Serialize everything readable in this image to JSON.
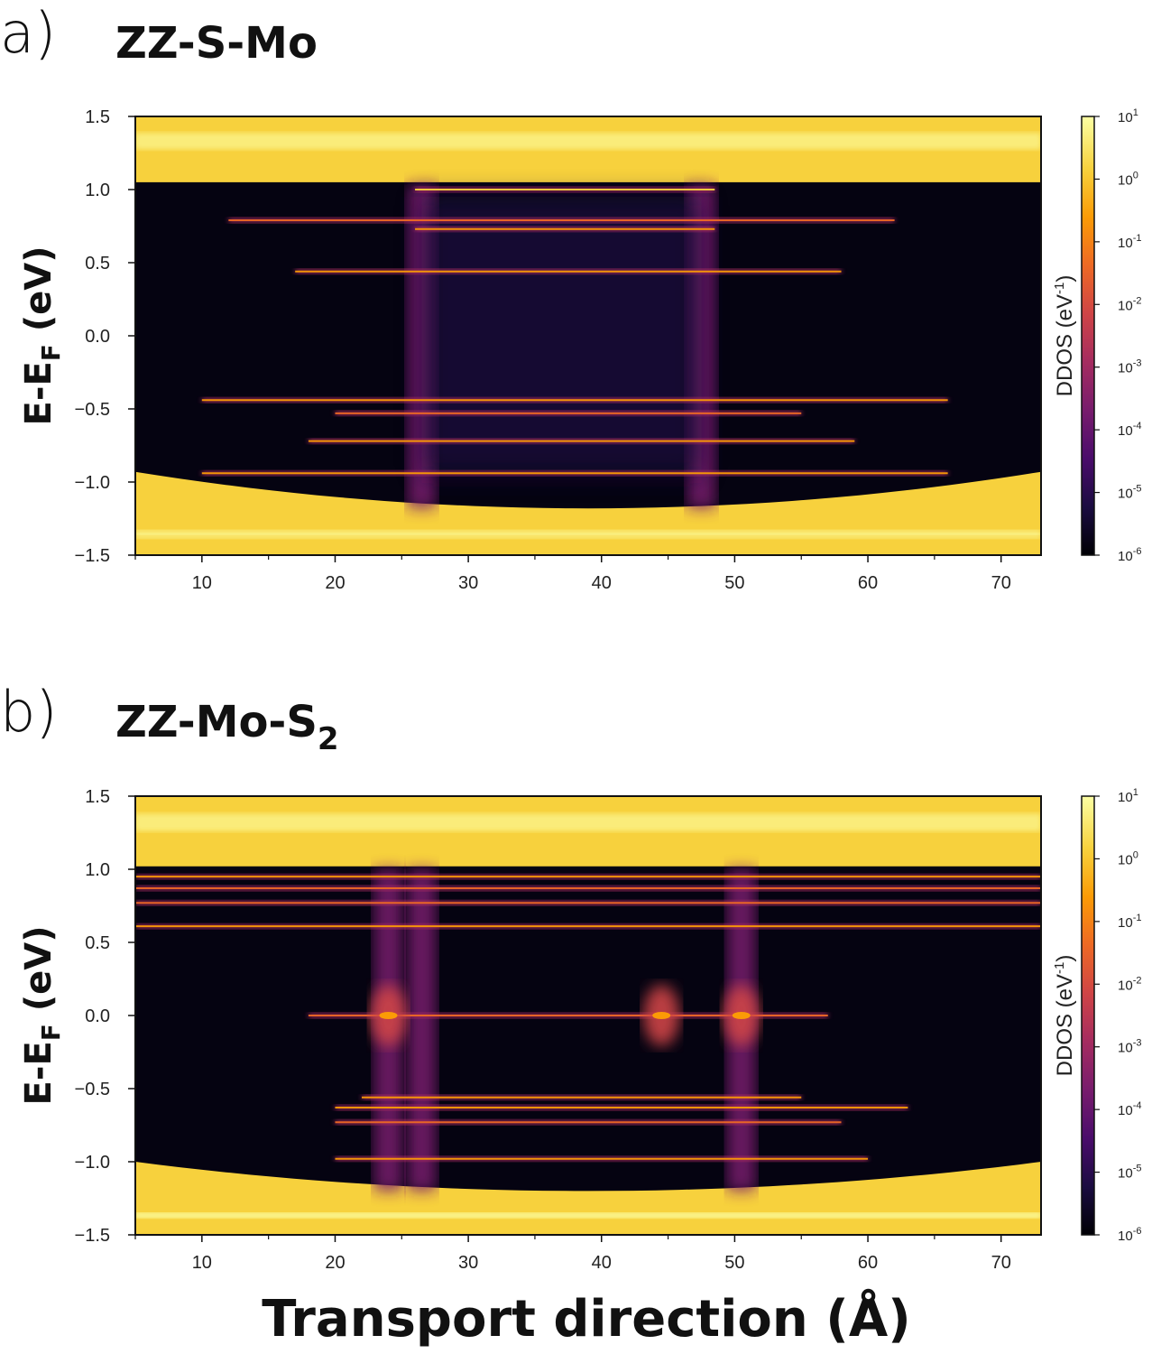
{
  "figure": {
    "xlabel": "Transport direction (Å)",
    "colormap": [
      "#000004",
      "#1b0c41",
      "#4a0c6b",
      "#781c6d",
      "#a52c60",
      "#cf4446",
      "#ed6925",
      "#fb9b06",
      "#f7d13d",
      "#fcffa4"
    ]
  },
  "chart_data": [
    {
      "type": "heatmap",
      "panel": "a)",
      "title": "ZZ-S-Mo",
      "title_subscript": "",
      "ylabel_main": "E-E",
      "ylabel_sub": "F",
      "ylabel_unit": " (eV)",
      "xlim": [
        5,
        73
      ],
      "ylim": [
        -1.5,
        1.5
      ],
      "x_ticks": [
        "10",
        "20",
        "30",
        "40",
        "50",
        "60",
        "70"
      ],
      "y_ticks": [
        "1.5",
        "1.0",
        "0.5",
        "0.0",
        "−0.5",
        "−1.0",
        "−1.5"
      ],
      "colorbar_label": "DDOS (eV",
      "colorbar_label_sup": "-1",
      "colorbar_ticks": [
        {
          "base": "10",
          "exp": "1"
        },
        {
          "base": "10",
          "exp": "0"
        },
        {
          "base": "10",
          "exp": "-1"
        },
        {
          "base": "10",
          "exp": "-2"
        },
        {
          "base": "10",
          "exp": "-3"
        },
        {
          "base": "10",
          "exp": "-4"
        },
        {
          "base": "10",
          "exp": "-5"
        },
        {
          "base": "10",
          "exp": "-6"
        }
      ],
      "conduction_band_min_eV": 1.05,
      "valence_band_max_eV": -0.93,
      "valence_edge_dip_eV": 0.25,
      "defect_columns_x": [
        26.5,
        47.5
      ],
      "defect_states": [
        {
          "E": 1.0,
          "x_start": 26,
          "x_end": 48.5,
          "intensity": 1.0
        },
        {
          "E": 0.79,
          "x_start": 12,
          "x_end": 62,
          "intensity": 0.55
        },
        {
          "E": 0.73,
          "x_start": 26,
          "x_end": 48.5,
          "intensity": 0.75
        },
        {
          "E": 0.44,
          "x_start": 17,
          "x_end": 58,
          "intensity": 0.8
        },
        {
          "E": -0.44,
          "x_start": 10,
          "x_end": 66,
          "intensity": 0.85
        },
        {
          "E": -0.53,
          "x_start": 20,
          "x_end": 55,
          "intensity": 0.55
        },
        {
          "E": -0.72,
          "x_start": 18,
          "x_end": 59,
          "intensity": 0.7
        },
        {
          "E": -0.94,
          "x_start": 10,
          "x_end": 66,
          "intensity": 0.65
        }
      ]
    },
    {
      "type": "heatmap",
      "panel": "b)",
      "title": "ZZ-Mo-S",
      "title_subscript": "2",
      "ylabel_main": "E-E",
      "ylabel_sub": "F",
      "ylabel_unit": " (eV)",
      "xlim": [
        5,
        73
      ],
      "ylim": [
        -1.5,
        1.5
      ],
      "x_ticks": [
        "10",
        "20",
        "30",
        "40",
        "50",
        "60",
        "70"
      ],
      "y_ticks": [
        "1.5",
        "1.0",
        "0.5",
        "0.0",
        "−0.5",
        "−1.0",
        "−1.5"
      ],
      "colorbar_label": "DDOS (eV",
      "colorbar_label_sup": "-1",
      "colorbar_ticks": [
        {
          "base": "10",
          "exp": "1"
        },
        {
          "base": "10",
          "exp": "0"
        },
        {
          "base": "10",
          "exp": "-1"
        },
        {
          "base": "10",
          "exp": "-2"
        },
        {
          "base": "10",
          "exp": "-3"
        },
        {
          "base": "10",
          "exp": "-4"
        },
        {
          "base": "10",
          "exp": "-5"
        },
        {
          "base": "10",
          "exp": "-6"
        }
      ],
      "conduction_band_min_eV": 1.02,
      "valence_band_max_eV": -1.0,
      "valence_edge_dip_eV": 0.2,
      "defect_columns_x": [
        24,
        26.5,
        50.5
      ],
      "midgap_spots": [
        {
          "x": 24,
          "E": 0.0
        },
        {
          "x": 44.5,
          "E": 0.0
        },
        {
          "x": 50.5,
          "E": 0.0
        }
      ],
      "defect_states": [
        {
          "E": 0.95,
          "x_start": 5,
          "x_end": 73,
          "intensity": 0.7
        },
        {
          "E": 0.87,
          "x_start": 5,
          "x_end": 73,
          "intensity": 0.6
        },
        {
          "E": 0.77,
          "x_start": 5,
          "x_end": 73,
          "intensity": 0.6
        },
        {
          "E": 0.61,
          "x_start": 5,
          "x_end": 73,
          "intensity": 0.7
        },
        {
          "E": 0.0,
          "x_start": 18,
          "x_end": 57,
          "intensity": 0.4
        },
        {
          "E": -0.56,
          "x_start": 22,
          "x_end": 55,
          "intensity": 0.7
        },
        {
          "E": -0.63,
          "x_start": 20,
          "x_end": 63,
          "intensity": 0.75
        },
        {
          "E": -0.73,
          "x_start": 20,
          "x_end": 58,
          "intensity": 0.55
        },
        {
          "E": -0.98,
          "x_start": 20,
          "x_end": 60,
          "intensity": 0.65
        }
      ]
    }
  ]
}
